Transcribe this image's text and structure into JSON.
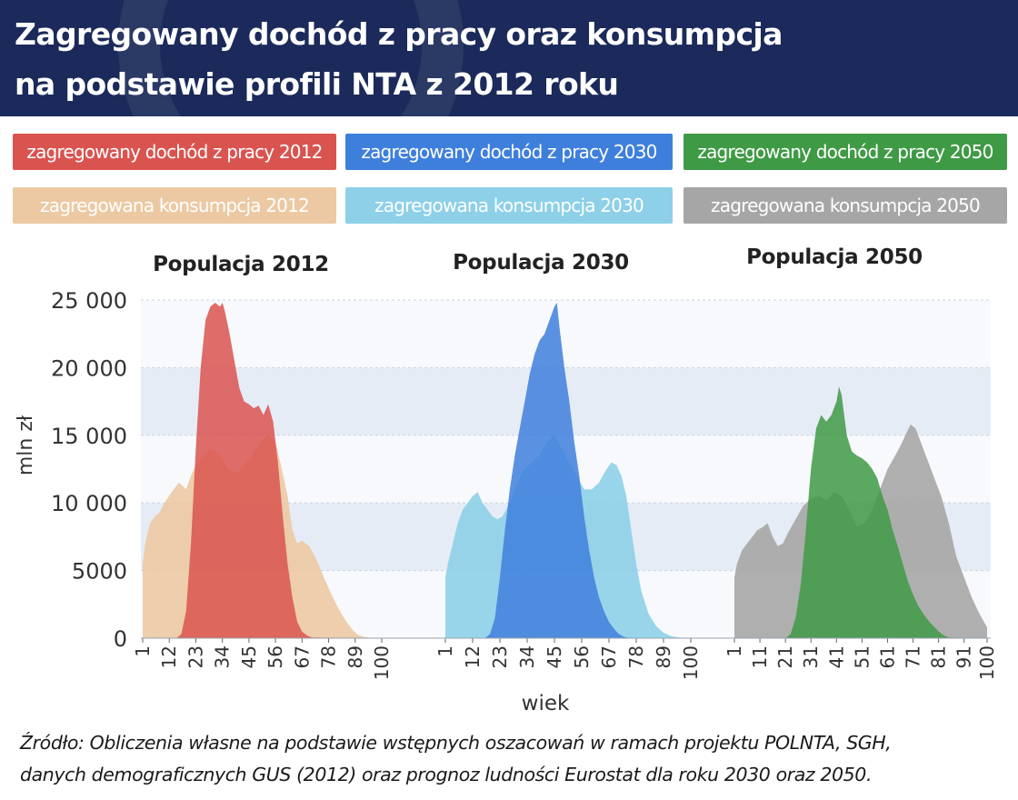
{
  "header": {
    "title_line1": "Zagregowany dochód z pracy oraz konsumpcja",
    "title_line2": "na podstawie profili NTA z 2012 roku"
  },
  "legend": [
    {
      "label": "zagregowany dochód z pracy 2012",
      "color": "#d9534f"
    },
    {
      "label": "zagregowany dochód z pracy 2030",
      "color": "#3f7fdc"
    },
    {
      "label": "zagregowany dochód z pracy 2050",
      "color": "#3f9a45"
    },
    {
      "label": "zagregowana konsumpcja 2012",
      "color": "#ecc9a3"
    },
    {
      "label": "zagregowana konsumpcja 2030",
      "color": "#8dd0e8"
    },
    {
      "label": "zagregowana konsumpcja 2050",
      "color": "#a6a6a6"
    }
  ],
  "chart_data": {
    "type": "area",
    "ylabel": "mln zł",
    "xlabel": "wiek",
    "ylim": [
      0,
      25000
    ],
    "yticks": [
      0,
      5000,
      10000,
      15000,
      20000,
      25000
    ],
    "ytick_labels": [
      "0",
      "5000",
      "10 000",
      "15 000",
      "20 000",
      "25 000"
    ],
    "grid": "horizontal bands",
    "panels": [
      {
        "title": "Populacja 2012",
        "xlim": [
          1,
          100
        ],
        "xtick_labels": [
          "1",
          "12",
          "23",
          "34",
          "45",
          "56",
          "67",
          "78",
          "89",
          "100"
        ],
        "xticks": [
          1,
          12,
          23,
          34,
          45,
          56,
          67,
          78,
          89,
          100
        ],
        "series": [
          {
            "name": "zagregowana konsumpcja 2012",
            "color": "#ecc9a3",
            "x": [
              1,
              2,
              4,
              6,
              8,
              10,
              13,
              16,
              19,
              21,
              23,
              26,
              29,
              33,
              36,
              40,
              43,
              46,
              50,
              53,
              56,
              58,
              61,
              63,
              65,
              67,
              70,
              73,
              76,
              79,
              82,
              85,
              88,
              90,
              93,
              96,
              100
            ],
            "values": [
              5500,
              7000,
              8500,
              9000,
              9300,
              10000,
              10800,
              11500,
              11000,
              12000,
              12800,
              13500,
              14000,
              13500,
              12500,
              12200,
              12800,
              13500,
              14500,
              15000,
              14500,
              13000,
              10500,
              8000,
              7000,
              7200,
              6800,
              5800,
              4500,
              3300,
              2200,
              1300,
              600,
              250,
              80,
              20,
              0
            ]
          },
          {
            "name": "zagregowany dochód z pracy 2012",
            "color": "#d9534f",
            "x": [
              1,
              15,
              17,
              19,
              21,
              23,
              25,
              27,
              29,
              31,
              33,
              34,
              35,
              37,
              39,
              41,
              43,
              45,
              47,
              49,
              51,
              53,
              55,
              57,
              59,
              61,
              63,
              65,
              67,
              69,
              71,
              100
            ],
            "values": [
              0,
              0,
              300,
              2000,
              7000,
              14000,
              20000,
              23500,
              24500,
              24800,
              24500,
              24800,
              24200,
              22500,
              20500,
              18500,
              17500,
              17300,
              17000,
              17200,
              16500,
              17300,
              16000,
              13000,
              9000,
              5500,
              3000,
              1200,
              500,
              200,
              50,
              0
            ]
          }
        ]
      },
      {
        "title": "Populacja 2030",
        "xlim": [
          1,
          100
        ],
        "xtick_labels": [
          "1",
          "12",
          "23",
          "34",
          "45",
          "56",
          "67",
          "78",
          "89",
          "100"
        ],
        "xticks": [
          1,
          12,
          23,
          34,
          45,
          56,
          67,
          78,
          89,
          100
        ],
        "series": [
          {
            "name": "zagregowana konsumpcja 2030",
            "color": "#8dd0e8",
            "x": [
              1,
              2,
              4,
              6,
              8,
              10,
              12,
              14,
              16,
              18,
              20,
              22,
              24,
              27,
              30,
              33,
              36,
              39,
              42,
              45,
              48,
              51,
              54,
              57,
              60,
              63,
              66,
              68,
              70,
              72,
              74,
              76,
              78,
              80,
              83,
              86,
              89,
              92,
              95,
              98,
              100
            ],
            "values": [
              4500,
              5500,
              7000,
              8500,
              9500,
              10000,
              10500,
              10800,
              10000,
              9500,
              9000,
              8800,
              9000,
              10000,
              11500,
              12500,
              13000,
              13500,
              14500,
              15000,
              14000,
              13000,
              12000,
              11000,
              11000,
              11500,
              12500,
              13000,
              12800,
              12000,
              10500,
              8000,
              5500,
              3500,
              1800,
              900,
              400,
              150,
              60,
              20,
              0
            ]
          },
          {
            "name": "zagregowany dochód z pracy 2030",
            "color": "#3f7fdc",
            "x": [
              1,
              17,
              19,
              21,
              23,
              25,
              27,
              29,
              31,
              33,
              35,
              37,
              39,
              41,
              43,
              45,
              46,
              47,
              49,
              51,
              53,
              55,
              57,
              59,
              61,
              63,
              65,
              67,
              69,
              71,
              73,
              75,
              100
            ],
            "values": [
              0,
              0,
              300,
              1500,
              4500,
              8000,
              11000,
              13500,
              15500,
              17500,
              19500,
              21000,
              22000,
              22500,
              23500,
              24500,
              24800,
              23000,
              20000,
              17500,
              14500,
              12000,
              9000,
              6500,
              4500,
              3000,
              2000,
              1200,
              700,
              300,
              100,
              30,
              0
            ]
          }
        ]
      },
      {
        "title": "Populacja 2050",
        "xlim": [
          1,
          100
        ],
        "xtick_labels": [
          "1",
          "11",
          "21",
          "31",
          "41",
          "51",
          "61",
          "71",
          "81",
          "91",
          "100"
        ],
        "xticks": [
          1,
          11,
          21,
          31,
          41,
          51,
          61,
          71,
          81,
          91,
          100
        ],
        "series": [
          {
            "name": "zagregowana konsumpcja 2050",
            "color": "#a6a6a6",
            "x": [
              1,
              2,
              4,
              6,
              8,
              10,
              12,
              14,
              16,
              18,
              20,
              22,
              25,
              28,
              31,
              34,
              37,
              40,
              43,
              46,
              49,
              52,
              55,
              58,
              61,
              64,
              66,
              68,
              70,
              72,
              74,
              76,
              78,
              80,
              82,
              85,
              88,
              91,
              94,
              97,
              100
            ],
            "values": [
              4500,
              5500,
              6500,
              7000,
              7500,
              8000,
              8200,
              8500,
              7500,
              6800,
              7000,
              7800,
              8800,
              9800,
              10300,
              10500,
              10200,
              10800,
              10500,
              9500,
              8200,
              8500,
              9500,
              11000,
              12500,
              13500,
              14200,
              15000,
              15800,
              15500,
              14500,
              13500,
              12500,
              11500,
              10500,
              8500,
              6000,
              4500,
              3000,
              1800,
              800
            ]
          },
          {
            "name": "zagregowany dochód z pracy 2050",
            "color": "#3f9a45",
            "x": [
              1,
              21,
              23,
              25,
              27,
              29,
              31,
              33,
              35,
              37,
              39,
              41,
              42,
              43,
              45,
              47,
              49,
              51,
              53,
              55,
              57,
              59,
              61,
              63,
              65,
              67,
              69,
              71,
              73,
              75,
              77,
              79,
              81,
              83,
              85,
              100
            ],
            "values": [
              0,
              0,
              300,
              1500,
              4000,
              8000,
              12500,
              15500,
              16500,
              16000,
              16500,
              17500,
              18600,
              18000,
              15000,
              13800,
              13500,
              13300,
              13000,
              12500,
              11800,
              10500,
              9500,
              8000,
              6800,
              5500,
              4200,
              3200,
              2400,
              1800,
              1300,
              900,
              500,
              200,
              50,
              0
            ]
          }
        ]
      }
    ]
  },
  "source": {
    "line1": "Źródło: Obliczenia własne na podstawie wstępnych oszacowań w ramach projektu POLNTA, SGH,",
    "line2": "danych demograficznych GUS (2012) oraz prognoz ludności Eurostat dla roku 2030 oraz 2050."
  }
}
